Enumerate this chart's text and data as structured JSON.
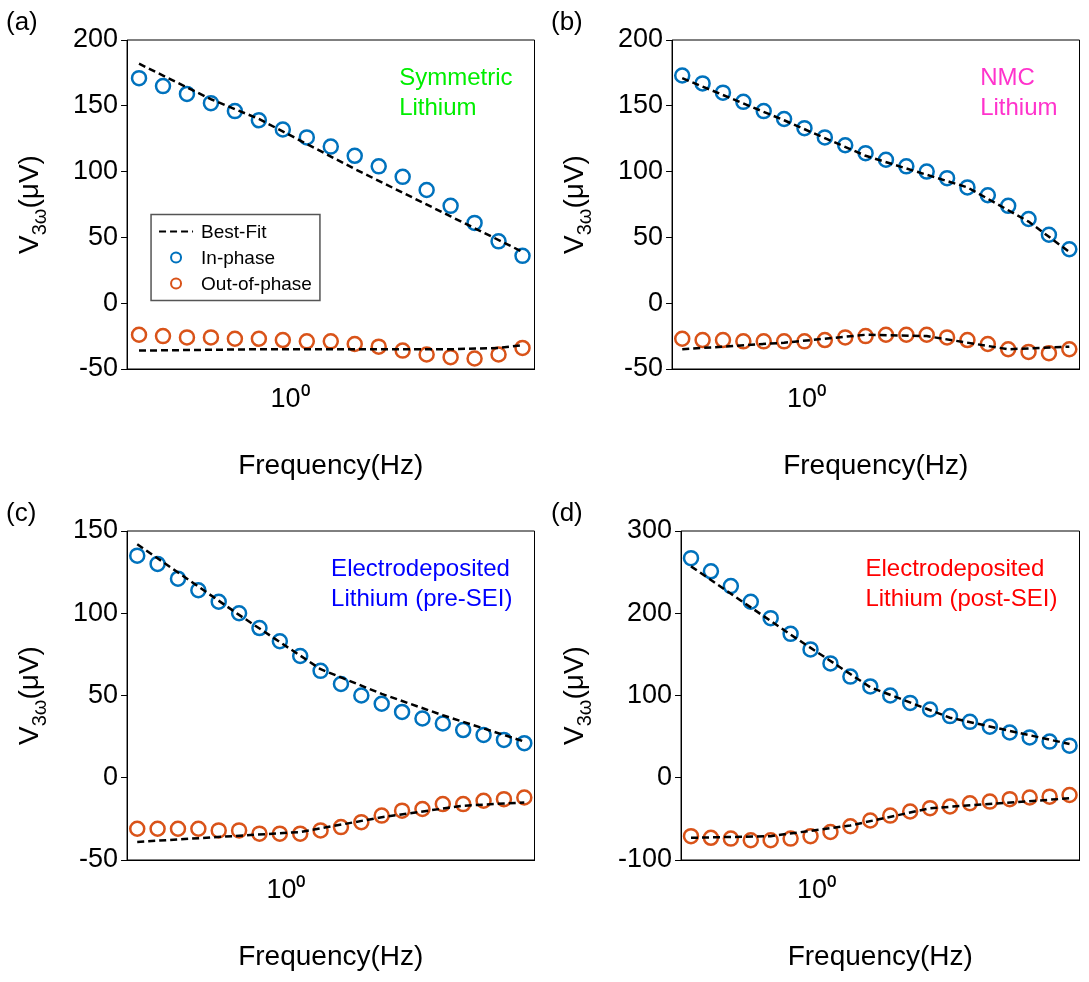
{
  "chart_data": [
    {
      "type": "scatter",
      "title": "(a)",
      "xlabel": "Frequency(Hz)",
      "ylabel": "V$_{3ω}$(μV)",
      "grid": false,
      "legend": "left",
      "marker": "circle",
      "annotations": [
        "Symmetric\nLithium",
        "10⁰"
      ],
      "ylim": [
        -50,
        200
      ],
      "yticks": [
        -50,
        0,
        50,
        100,
        150,
        200
      ],
      "categories": [
        null,
        null,
        null,
        null,
        null,
        null,
        null,
        null,
        null,
        null,
        null,
        null,
        null,
        null,
        null,
        null,
        null
      ],
      "series": [
        {
          "name": "Best-Fit",
          "type": "line",
          "line_style": "dashed",
          "marker": "none",
          "color": "#000000",
          "values": [
            182,
            null,
            null,
            155,
            null,
            140,
            null,
            null,
            null,
            102,
            null,
            null,
            null,
            66,
            null,
            null,
            39
          ]
        },
        {
          "type": "line",
          "line_style": "dashed",
          "marker": "none",
          "color": "#000000",
          "values": [
            -36,
            null,
            null,
            null,
            null,
            -35,
            null,
            null,
            null,
            -35,
            null,
            null,
            null,
            -35,
            null,
            -34,
            -32
          ]
        },
        {
          "name": "In-phase",
          "color": "#0072bd",
          "values": [
            171,
            165,
            159,
            152,
            146,
            139,
            132,
            126,
            119,
            112,
            104,
            96,
            86,
            74,
            61,
            47,
            36
          ]
        },
        {
          "name": "Out-of-phase",
          "color": "#d95319",
          "values": [
            -24,
            -25,
            -26,
            -26,
            -27,
            -27,
            -28,
            -29,
            -29,
            -31,
            -33,
            -36,
            -39,
            -41,
            -42,
            -39,
            -34
          ]
        }
      ]
    },
    {
      "type": "scatter",
      "title": "(b)",
      "xlabel": "Frequency(Hz)",
      "ylabel": "V$_{3ω}$(μV)",
      "grid": false,
      "marker": "circle",
      "annotations": [
        "NMC\nLithium",
        "10⁰"
      ],
      "ylim": [
        -50,
        200
      ],
      "yticks": [
        -50,
        0,
        50,
        100,
        150,
        200
      ],
      "categories": [
        null,
        null,
        null,
        null,
        null,
        null,
        null,
        null,
        null,
        null,
        null,
        null,
        null,
        null,
        null,
        null,
        null,
        null,
        null,
        null
      ],
      "series": [
        {
          "type": "line",
          "line_style": "dashed",
          "marker": "none",
          "color": "#000000",
          "values": [
            171,
            null,
            null,
            null,
            null,
            139,
            null,
            null,
            null,
            112,
            null,
            null,
            null,
            null,
            88,
            null,
            null,
            62,
            null,
            39
          ]
        },
        {
          "type": "line",
          "line_style": "dashed",
          "marker": "none",
          "color": "#000000",
          "values": [
            -35,
            null,
            null,
            null,
            null,
            -30,
            null,
            null,
            null,
            -24,
            null,
            null,
            -25,
            null,
            null,
            null,
            -35,
            null,
            null,
            -33
          ]
        },
        {
          "color": "#0072bd",
          "values": [
            173,
            167,
            160,
            153,
            146,
            140,
            133,
            126,
            120,
            114,
            109,
            104,
            100,
            95,
            88,
            82,
            74,
            64,
            52,
            41
          ]
        },
        {
          "color": "#d95319",
          "values": [
            -27,
            -28,
            -28,
            -29,
            -29,
            -29,
            -29,
            -28,
            -26,
            -25,
            -24,
            -24,
            -24,
            -26,
            -28,
            -31,
            -35,
            -37,
            -38,
            -35
          ]
        }
      ]
    },
    {
      "type": "scatter",
      "title": "(c)",
      "xlabel": "Frequency(Hz)",
      "ylabel": "V$_{3ω}$(μV)",
      "grid": false,
      "marker": "circle",
      "annotations": [
        "Electrodeposited\nLithium (pre-SEI)",
        "10⁰"
      ],
      "ylim": [
        -50,
        150
      ],
      "yticks": [
        -50,
        0,
        50,
        100,
        150
      ],
      "categories": [
        null,
        null,
        null,
        null,
        null,
        null,
        null,
        null,
        null,
        null,
        null,
        null,
        null,
        null,
        null,
        null,
        null,
        null,
        null,
        null
      ],
      "series": [
        {
          "type": "line",
          "line_style": "dashed",
          "marker": "none",
          "color": "#000000",
          "values": [
            142,
            null,
            null,
            null,
            null,
            99,
            null,
            null,
            null,
            66,
            null,
            null,
            51,
            null,
            null,
            38,
            null,
            null,
            null,
            22
          ]
        },
        {
          "type": "line",
          "line_style": "dashed",
          "marker": "none",
          "color": "#000000",
          "values": [
            -39,
            null,
            null,
            null,
            null,
            null,
            null,
            null,
            -33,
            null,
            null,
            null,
            -24,
            null,
            null,
            null,
            -17,
            null,
            null,
            -15
          ]
        },
        {
          "color": "#0072bd",
          "values": [
            135,
            130,
            121,
            114,
            107,
            100,
            91,
            83,
            74,
            65,
            57,
            50,
            45,
            40,
            36,
            33,
            29,
            26,
            23,
            21
          ]
        },
        {
          "color": "#d95319",
          "values": [
            -31,
            -31,
            -31,
            -31,
            -32,
            -32,
            -34,
            -34,
            -34,
            -32,
            -30,
            -27,
            -23,
            -20,
            -19,
            -16,
            -16,
            -14,
            -13,
            -12
          ]
        }
      ]
    },
    {
      "type": "scatter",
      "title": "(d)",
      "xlabel": "Frequency(Hz)",
      "ylabel": "V$_{3ω}$(μV)",
      "grid": false,
      "marker": "circle",
      "annotations": [
        "Electrodeposited\nLithium (post-SEI)",
        "10⁰"
      ],
      "ylim": [
        -100,
        300
      ],
      "yticks": [
        -100,
        0,
        100,
        200,
        300
      ],
      "categories": [
        null,
        null,
        null,
        null,
        null,
        null,
        null,
        null,
        null,
        null,
        null,
        null,
        null,
        null,
        null,
        null,
        null,
        null,
        null,
        null
      ],
      "series": [
        {
          "type": "line",
          "line_style": "dashed",
          "marker": "none",
          "color": "#000000",
          "values": [
            257,
            null,
            null,
            null,
            null,
            174,
            null,
            null,
            null,
            110,
            null,
            null,
            null,
            73,
            null,
            null,
            null,
            null,
            null,
            41
          ]
        },
        {
          "type": "line",
          "line_style": "dashed",
          "marker": "none",
          "color": "#000000",
          "values": [
            -73,
            null,
            null,
            null,
            -71,
            null,
            null,
            null,
            -58,
            null,
            null,
            null,
            -37,
            null,
            null,
            null,
            null,
            null,
            null,
            -25
          ]
        },
        {
          "color": "#0072bd",
          "values": [
            267,
            251,
            233,
            214,
            194,
            175,
            156,
            139,
            123,
            111,
            100,
            91,
            83,
            75,
            68,
            62,
            55,
            49,
            44,
            39
          ]
        },
        {
          "color": "#d95319",
          "values": [
            -71,
            -73,
            -74,
            -76,
            -76,
            -74,
            -71,
            -66,
            -59,
            -52,
            -46,
            -41,
            -37,
            -35,
            -31,
            -29,
            -26,
            -24,
            -23,
            -21
          ]
        }
      ]
    }
  ]
}
